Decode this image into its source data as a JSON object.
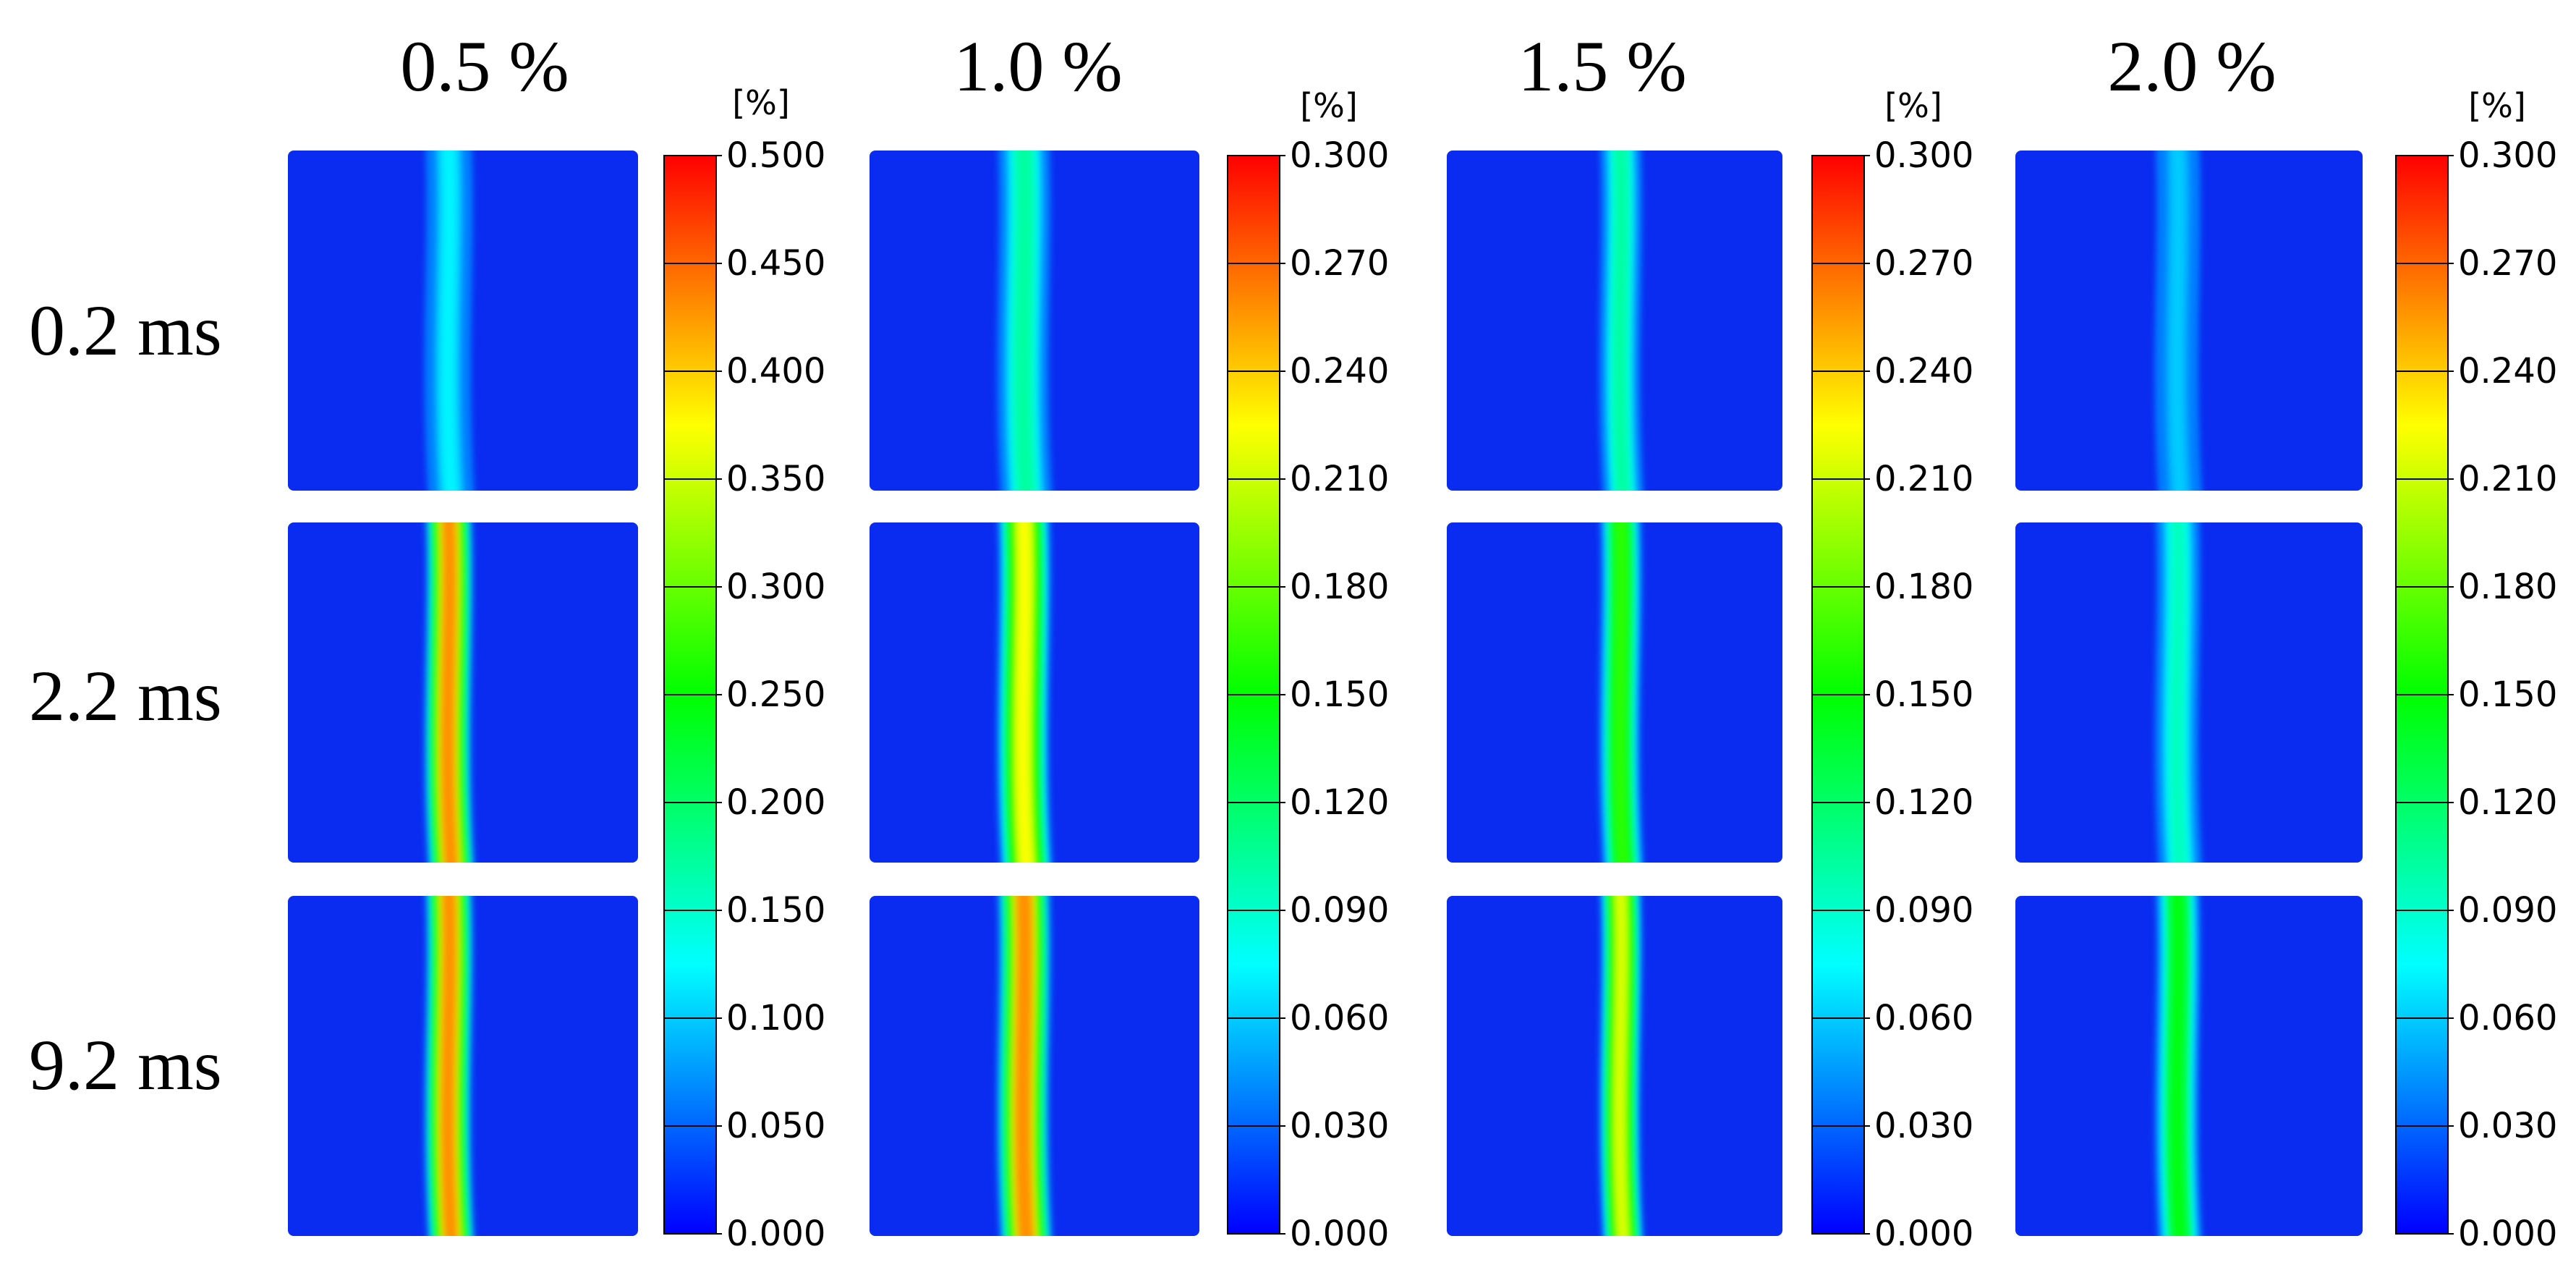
{
  "chart_data": {
    "type": "heatmap",
    "title": "",
    "column_titles": [
      "0.5 %",
      "1.0 %",
      "1.5 %",
      "2.0 %"
    ],
    "row_labels": [
      "0.2 ms",
      "2.2 ms",
      "9.2 ms"
    ],
    "colorbars": [
      {
        "unit": "[%]",
        "min": 0.0,
        "max": 0.5,
        "ticks": [
          "0.500",
          "0.450",
          "0.400",
          "0.350",
          "0.300",
          "0.250",
          "0.200",
          "0.150",
          "0.100",
          "0.050",
          "0.000"
        ]
      },
      {
        "unit": "[%]",
        "min": 0.0,
        "max": 0.3,
        "ticks": [
          "0.300",
          "0.270",
          "0.240",
          "0.210",
          "0.180",
          "0.150",
          "0.120",
          "0.090",
          "0.060",
          "0.030",
          "0.000"
        ]
      },
      {
        "unit": "[%]",
        "min": 0.0,
        "max": 0.3,
        "ticks": [
          "0.300",
          "0.270",
          "0.240",
          "0.210",
          "0.180",
          "0.150",
          "0.120",
          "0.090",
          "0.060",
          "0.030",
          "0.000"
        ]
      },
      {
        "unit": "[%]",
        "min": 0.0,
        "max": 0.3,
        "ticks": [
          "0.300",
          "0.270",
          "0.240",
          "0.210",
          "0.180",
          "0.150",
          "0.120",
          "0.090",
          "0.060",
          "0.030",
          "0.000"
        ]
      }
    ],
    "band_peak_values": [
      [
        0.14,
        0.12,
        0.12,
        0.07
      ],
      [
        0.5,
        0.26,
        0.19,
        0.11
      ],
      [
        0.5,
        0.3,
        0.25,
        0.17
      ]
    ],
    "colormap": [
      "#0000ff",
      "#00ffff",
      "#00ff00",
      "#ffff00",
      "#ff0000"
    ]
  }
}
